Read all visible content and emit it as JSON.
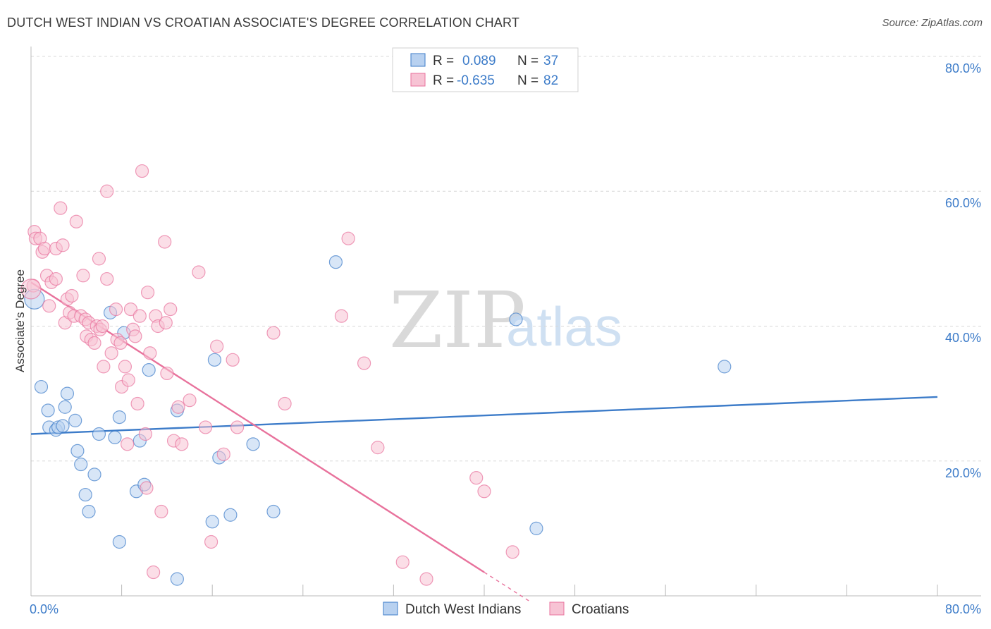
{
  "title": "DUTCH WEST INDIAN VS CROATIAN ASSOCIATE'S DEGREE CORRELATION CHART",
  "source": "Source: ZipAtlas.com",
  "watermark": {
    "zip": "ZIP",
    "atlas": "atlas"
  },
  "colors": {
    "blue": "#3d7cc9",
    "pink": "#e8729c",
    "blue_fill": "#b8d1f0",
    "pink_fill": "#f7c3d4",
    "grid": "#d8d8d8"
  },
  "legend": {
    "rows": [
      {
        "r_label": "R =",
        "r_value": "0.089",
        "n_label": "N =",
        "n_value": "37"
      },
      {
        "r_label": "R =",
        "r_value": "-0.635",
        "n_label": "N =",
        "n_value": "82"
      }
    ]
  },
  "chart_data": {
    "type": "scatter",
    "xlabel": "",
    "ylabel": "Associate's Degree",
    "xlim": [
      0,
      80
    ],
    "ylim": [
      0,
      80
    ],
    "x_tick_labels": [
      "0.0%",
      "80.0%"
    ],
    "y_ticks": [
      20,
      40,
      60,
      80
    ],
    "y_tick_labels": [
      "20.0%",
      "40.0%",
      "60.0%",
      "80.0%"
    ],
    "grid": "horizontal dashed",
    "legend_position": "bottom-center",
    "series": [
      {
        "name": "Dutch West Indians",
        "color": "#3d7cc9",
        "trend": {
          "x0": 0,
          "y0": 24.0,
          "x1": 80,
          "y1": 29.5
        },
        "points": [
          [
            0.3,
            44
          ],
          [
            0.9,
            31
          ],
          [
            1.5,
            27.5
          ],
          [
            1.6,
            25
          ],
          [
            2.2,
            24.6
          ],
          [
            2.4,
            25
          ],
          [
            2.8,
            25.2
          ],
          [
            3.0,
            28
          ],
          [
            3.2,
            30
          ],
          [
            3.9,
            26
          ],
          [
            4.1,
            21.5
          ],
          [
            4.4,
            19.5
          ],
          [
            4.8,
            15
          ],
          [
            5.1,
            12.5
          ],
          [
            5.6,
            18
          ],
          [
            6.0,
            24
          ],
          [
            7.0,
            42
          ],
          [
            7.4,
            23.5
          ],
          [
            7.8,
            26.5
          ],
          [
            7.8,
            8
          ],
          [
            8.2,
            39
          ],
          [
            9.3,
            15.5
          ],
          [
            9.6,
            23
          ],
          [
            10.0,
            16.5
          ],
          [
            10.4,
            33.5
          ],
          [
            12.9,
            27.5
          ],
          [
            12.9,
            2.5
          ],
          [
            16.0,
            11
          ],
          [
            16.2,
            35
          ],
          [
            16.6,
            20.5
          ],
          [
            17.6,
            12
          ],
          [
            19.6,
            22.5
          ],
          [
            21.4,
            12.5
          ],
          [
            26.9,
            49.5
          ],
          [
            42.8,
            41
          ],
          [
            44.6,
            10
          ],
          [
            61.2,
            34
          ]
        ]
      },
      {
        "name": "Croatians",
        "color": "#e8729c",
        "trend": {
          "x0": 0,
          "y0": 46.5,
          "x1": 40,
          "y1": 3.5,
          "dash_x1": 44,
          "dash_y1": -0.8
        },
        "points": [
          [
            0.2,
            46
          ],
          [
            0.3,
            54
          ],
          [
            0.4,
            53
          ],
          [
            0.8,
            53
          ],
          [
            1.0,
            51
          ],
          [
            1.2,
            51.5
          ],
          [
            1.4,
            47.5
          ],
          [
            1.6,
            43
          ],
          [
            1.8,
            46.5
          ],
          [
            2.2,
            51.5
          ],
          [
            2.2,
            47
          ],
          [
            2.6,
            57.5
          ],
          [
            2.8,
            52
          ],
          [
            3.0,
            40.5
          ],
          [
            3.2,
            44
          ],
          [
            3.4,
            42
          ],
          [
            3.6,
            44.5
          ],
          [
            3.8,
            41.5
          ],
          [
            4.0,
            55.5
          ],
          [
            4.4,
            41.5
          ],
          [
            4.6,
            47.5
          ],
          [
            4.8,
            41
          ],
          [
            4.9,
            38.5
          ],
          [
            5.1,
            40.5
          ],
          [
            5.3,
            38
          ],
          [
            5.6,
            37.5
          ],
          [
            5.8,
            40
          ],
          [
            6.0,
            50
          ],
          [
            6.1,
            39.5
          ],
          [
            6.3,
            40
          ],
          [
            6.4,
            34
          ],
          [
            6.7,
            47
          ],
          [
            6.7,
            60
          ],
          [
            7.1,
            36
          ],
          [
            7.5,
            42.5
          ],
          [
            7.6,
            38
          ],
          [
            7.9,
            37.5
          ],
          [
            8.0,
            31
          ],
          [
            8.3,
            34
          ],
          [
            8.5,
            22.5
          ],
          [
            8.6,
            32
          ],
          [
            8.8,
            42.5
          ],
          [
            9.0,
            39.5
          ],
          [
            9.2,
            38.5
          ],
          [
            9.4,
            28.5
          ],
          [
            9.6,
            41.5
          ],
          [
            9.8,
            63
          ],
          [
            10.1,
            24
          ],
          [
            10.2,
            16
          ],
          [
            10.3,
            45
          ],
          [
            10.5,
            36
          ],
          [
            10.8,
            3.5
          ],
          [
            11.0,
            41.5
          ],
          [
            11.2,
            40
          ],
          [
            11.5,
            12.5
          ],
          [
            11.8,
            52.5
          ],
          [
            11.9,
            40.5
          ],
          [
            12.0,
            33
          ],
          [
            12.3,
            42.5
          ],
          [
            12.6,
            23
          ],
          [
            13.0,
            28
          ],
          [
            13.3,
            22.5
          ],
          [
            14.0,
            29
          ],
          [
            14.8,
            48
          ],
          [
            15.4,
            25
          ],
          [
            15.9,
            8
          ],
          [
            16.4,
            37
          ],
          [
            17.0,
            21
          ],
          [
            17.8,
            35
          ],
          [
            18.2,
            25
          ],
          [
            21.4,
            39
          ],
          [
            22.4,
            28.5
          ],
          [
            27.4,
            41.5
          ],
          [
            28.0,
            53
          ],
          [
            29.4,
            34.5
          ],
          [
            30.6,
            22
          ],
          [
            32.8,
            5
          ],
          [
            34.9,
            2.5
          ],
          [
            39.3,
            17.5
          ],
          [
            40.0,
            15.5
          ],
          [
            42.5,
            6.5
          ],
          [
            0.0,
            45.5
          ]
        ]
      }
    ]
  }
}
